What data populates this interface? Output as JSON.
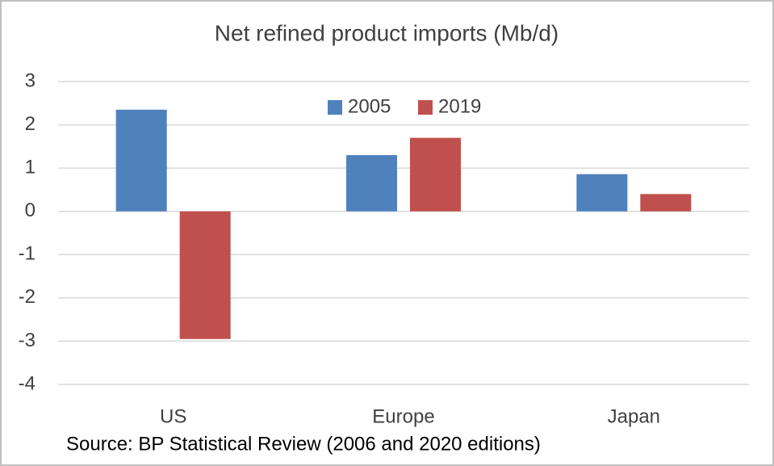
{
  "chart_data": {
    "type": "bar",
    "title": "Net refined product imports (Mb/d)",
    "categories": [
      "US",
      "Europe",
      "Japan"
    ],
    "series": [
      {
        "name": "2005",
        "color": "#4f81bd",
        "values": [
          2.35,
          1.3,
          0.86
        ]
      },
      {
        "name": "2019",
        "color": "#c0504d",
        "values": [
          -2.95,
          1.7,
          0.4
        ]
      }
    ],
    "ylim": [
      -4,
      3
    ],
    "yticks": [
      -4,
      -3,
      -2,
      -1,
      0,
      1,
      2,
      3
    ],
    "grid": true,
    "legend": "top",
    "source": "Source:  BP Statistical Review (2006 and 2020 editions)"
  }
}
